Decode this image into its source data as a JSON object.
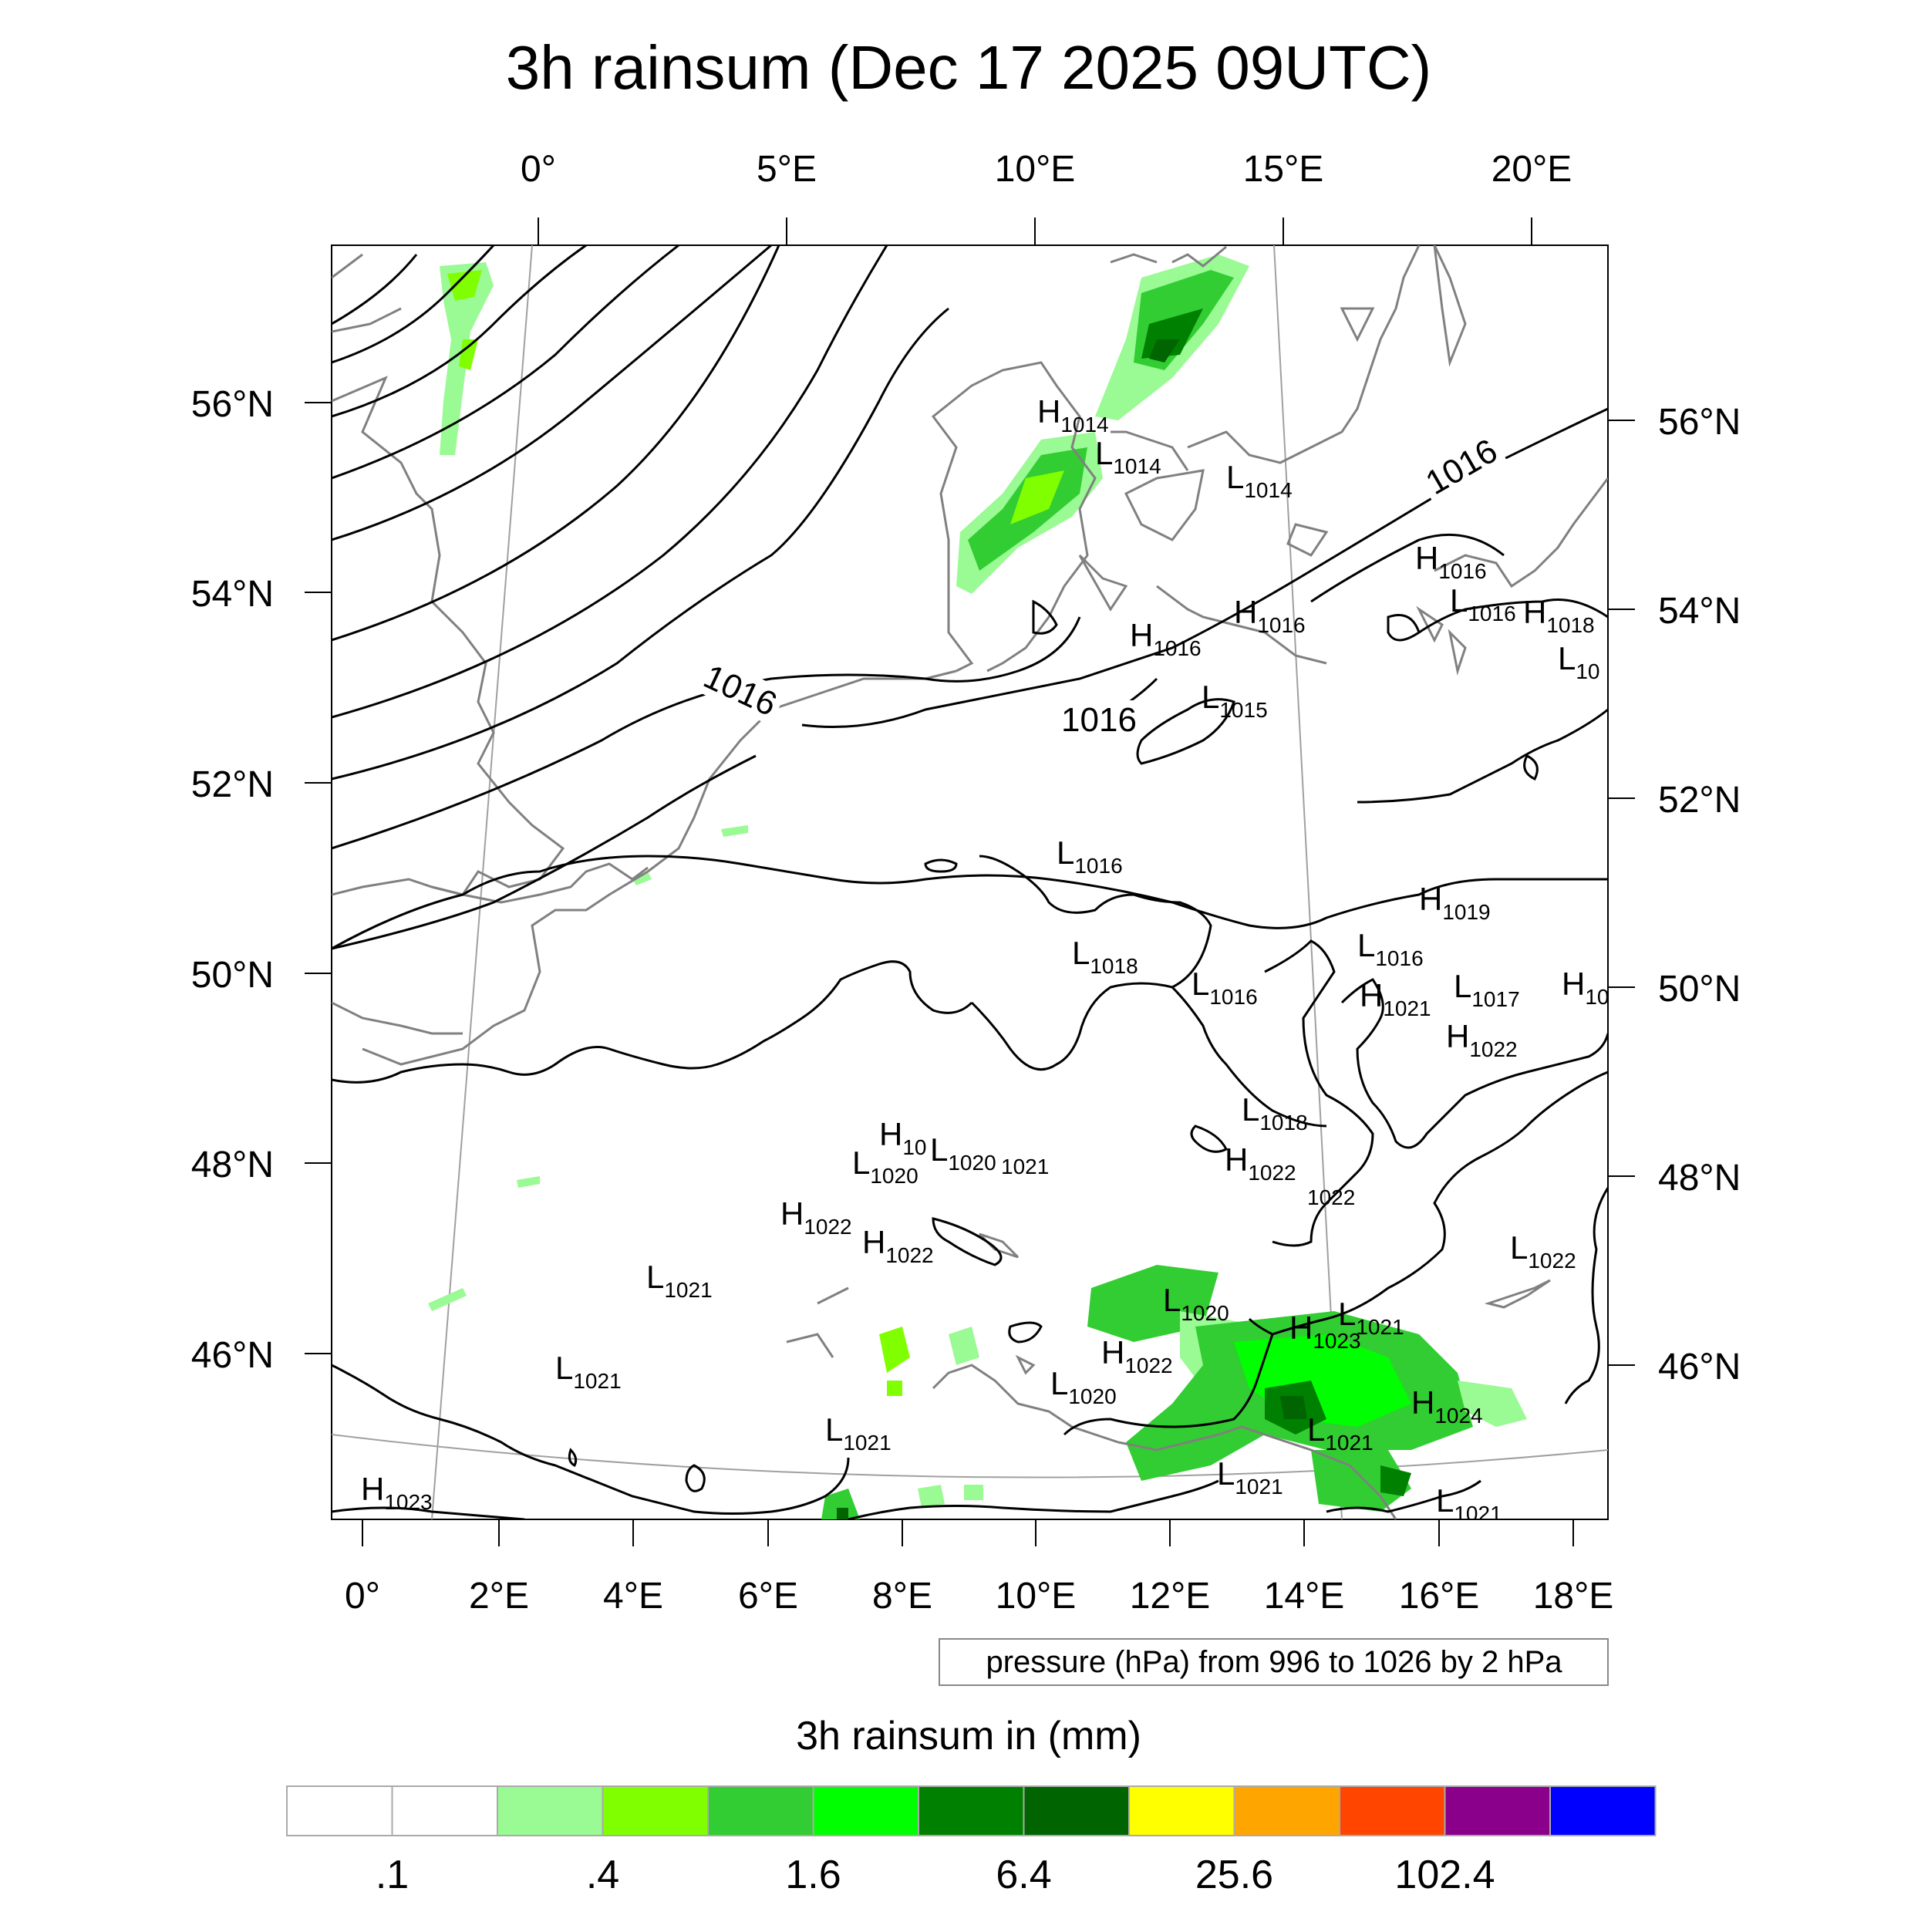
{
  "title": "3h rainsum (Dec 17 2025 09UTC)",
  "top_lon_labels": [
    "0°",
    "5°E",
    "10°E",
    "15°E",
    "20°E"
  ],
  "bottom_lon_labels": [
    "0°",
    "2°E",
    "4°E",
    "6°E",
    "8°E",
    "10°E",
    "12°E",
    "14°E",
    "16°E",
    "18°E"
  ],
  "left_lat_labels": [
    "56°N",
    "54°N",
    "52°N",
    "50°N",
    "48°N",
    "46°N"
  ],
  "right_lat_labels": [
    "56°N",
    "54°N",
    "52°N",
    "50°N",
    "48°N",
    "46°N"
  ],
  "contour_info": "pressure (hPa) from 996 to 1026 by 2 hPa",
  "isobar_labels": [
    "1016",
    "1016",
    "1016"
  ],
  "pressure_centers": [
    {
      "type": "H",
      "value": "1014"
    },
    {
      "type": "L",
      "value": "1014"
    },
    {
      "type": "L",
      "value": "1014"
    },
    {
      "type": "H",
      "value": "1016"
    },
    {
      "type": "L",
      "value": "1016"
    },
    {
      "type": "H",
      "value": "1018"
    },
    {
      "type": "L",
      "value": "10"
    },
    {
      "type": "H",
      "value": "1016"
    },
    {
      "type": "H",
      "value": "1016"
    },
    {
      "type": "L",
      "value": "1015"
    },
    {
      "type": "L",
      "value": "1016"
    },
    {
      "type": "H",
      "value": "1019"
    },
    {
      "type": "L",
      "value": "1016"
    },
    {
      "type": "L",
      "value": "1018"
    },
    {
      "type": "L",
      "value": "1016"
    },
    {
      "type": "H",
      "value": "1021"
    },
    {
      "type": "L",
      "value": "1017"
    },
    {
      "type": "H",
      "value": "10"
    },
    {
      "type": "H",
      "value": "1022"
    },
    {
      "type": "L",
      "value": "1018"
    },
    {
      "type": "H",
      "value": "10"
    },
    {
      "type": "L",
      "value": "1020"
    },
    {
      "type": "",
      "value": "1021"
    },
    {
      "type": "L",
      "value": "1020"
    },
    {
      "type": "H",
      "value": "1022"
    },
    {
      "type": "",
      "value": "1022"
    },
    {
      "type": "H",
      "value": "1022"
    },
    {
      "type": "H",
      "value": "1022"
    },
    {
      "type": "L",
      "value": "1022"
    },
    {
      "type": "L",
      "value": "1021"
    },
    {
      "type": "L",
      "value": "1020"
    },
    {
      "type": "L",
      "value": "1021"
    },
    {
      "type": "H",
      "value": "1023"
    },
    {
      "type": "H",
      "value": "1022"
    },
    {
      "type": "L",
      "value": "1021"
    },
    {
      "type": "L",
      "value": "1020"
    },
    {
      "type": "H",
      "value": "1024"
    },
    {
      "type": "L",
      "value": "1021"
    },
    {
      "type": "L",
      "value": "1021"
    },
    {
      "type": "L",
      "value": "1021"
    },
    {
      "type": "L",
      "value": "1021"
    },
    {
      "type": "H",
      "value": "1023"
    }
  ],
  "colorbar": {
    "title": "3h rainsum in (mm)",
    "colors": [
      "#ffffff",
      "#ffffff",
      "#9afa94",
      "#80ff00",
      "#32cd32",
      "#00ff00",
      "#008000",
      "#006400",
      "#ffff00",
      "#ffa500",
      "#ff4500",
      "#8b008b",
      "#0000ff"
    ],
    "labels": [
      ".1",
      ".4",
      "1.6",
      "6.4",
      "25.6",
      "102.4"
    ]
  },
  "colors": {
    "isobar": "#000000",
    "coastline": "#808080",
    "grid": "#a0a0a0"
  }
}
